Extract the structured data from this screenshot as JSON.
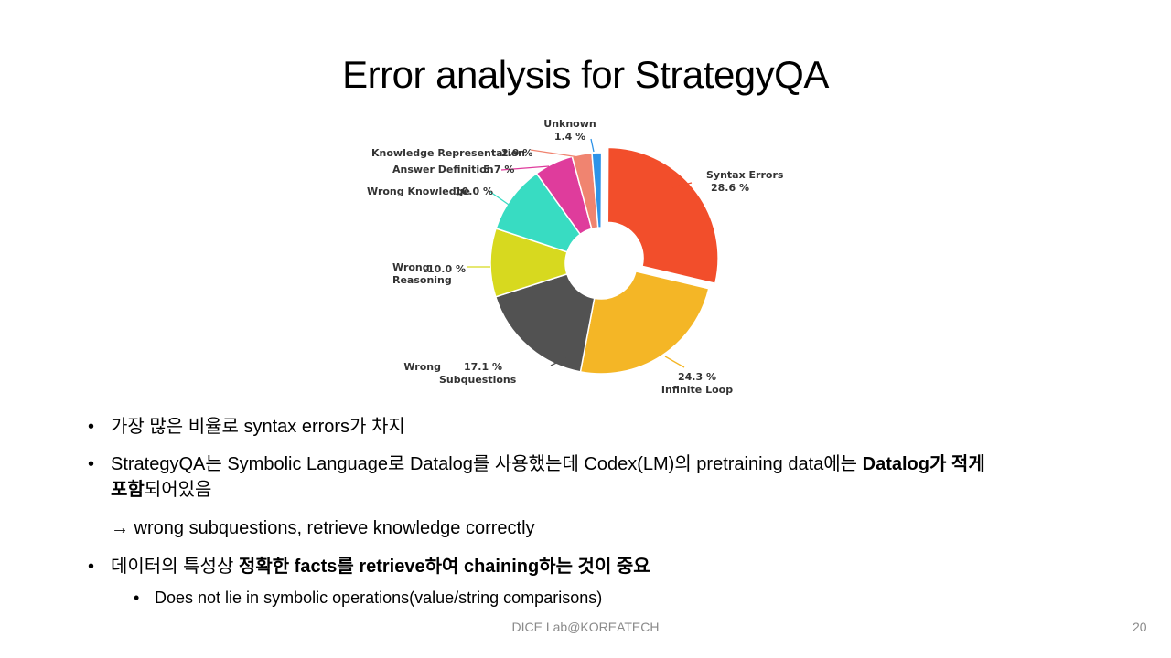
{
  "slide": {
    "title": "Error analysis for StrategyQA",
    "footer": "DICE Lab@KOREATECH",
    "page_number": "20"
  },
  "bullets": {
    "b1": "가장 많은 비율로 syntax errors가 차지",
    "b2_prefix": "StrategyQA는 Symbolic Language로 Datalog를 사용했는데 Codex(LM)의 pretraining data에는 ",
    "b2_bold1": "Datalog가 적게",
    "b2_bold2": "포함",
    "b2_suffix": "되어있음",
    "arrow_line": "→ wrong subquestions, retrieve knowledge correctly",
    "b3_prefix": "데이터의 특성상 ",
    "b3_bold": "정확한 facts를 retrieve하여 chaining하는 것이 중요",
    "sub1": "Does not lie in symbolic operations(value/string comparisons)",
    "bullet_symbol": "•"
  },
  "chart_data": {
    "type": "pie",
    "style": "donut",
    "title": "",
    "slices": [
      {
        "label": "Syntax Errors",
        "value": 28.6,
        "value_text": "28.6 %",
        "color": "#f24e2b"
      },
      {
        "label": "Infinite Loop",
        "value": 24.3,
        "value_text": "24.3 %",
        "color": "#f4b626"
      },
      {
        "label": "Wrong Subquestions",
        "label_line1": "Wrong",
        "label_line2": "Subquestions",
        "value": 17.1,
        "value_text": "17.1 %",
        "color": "#525252"
      },
      {
        "label": "Wrong Reasoning",
        "label_line1": "Wrong",
        "label_line2": "Reasoning",
        "value": 10.0,
        "value_text": "10.0 %",
        "color": "#d7d91f"
      },
      {
        "label": "Wrong Knowledge",
        "value": 10.0,
        "value_text": "10.0 %",
        "color": "#38dcc2"
      },
      {
        "label": "Answer Definition",
        "value": 5.7,
        "value_text": "5.7 %",
        "color": "#df3c9c"
      },
      {
        "label": "Knowledge Representation",
        "value": 2.9,
        "value_text": "2.9 %",
        "color": "#f08470"
      },
      {
        "label": "Unknown",
        "value": 1.4,
        "value_text": "1.4 %",
        "color": "#2e93e8"
      }
    ]
  }
}
